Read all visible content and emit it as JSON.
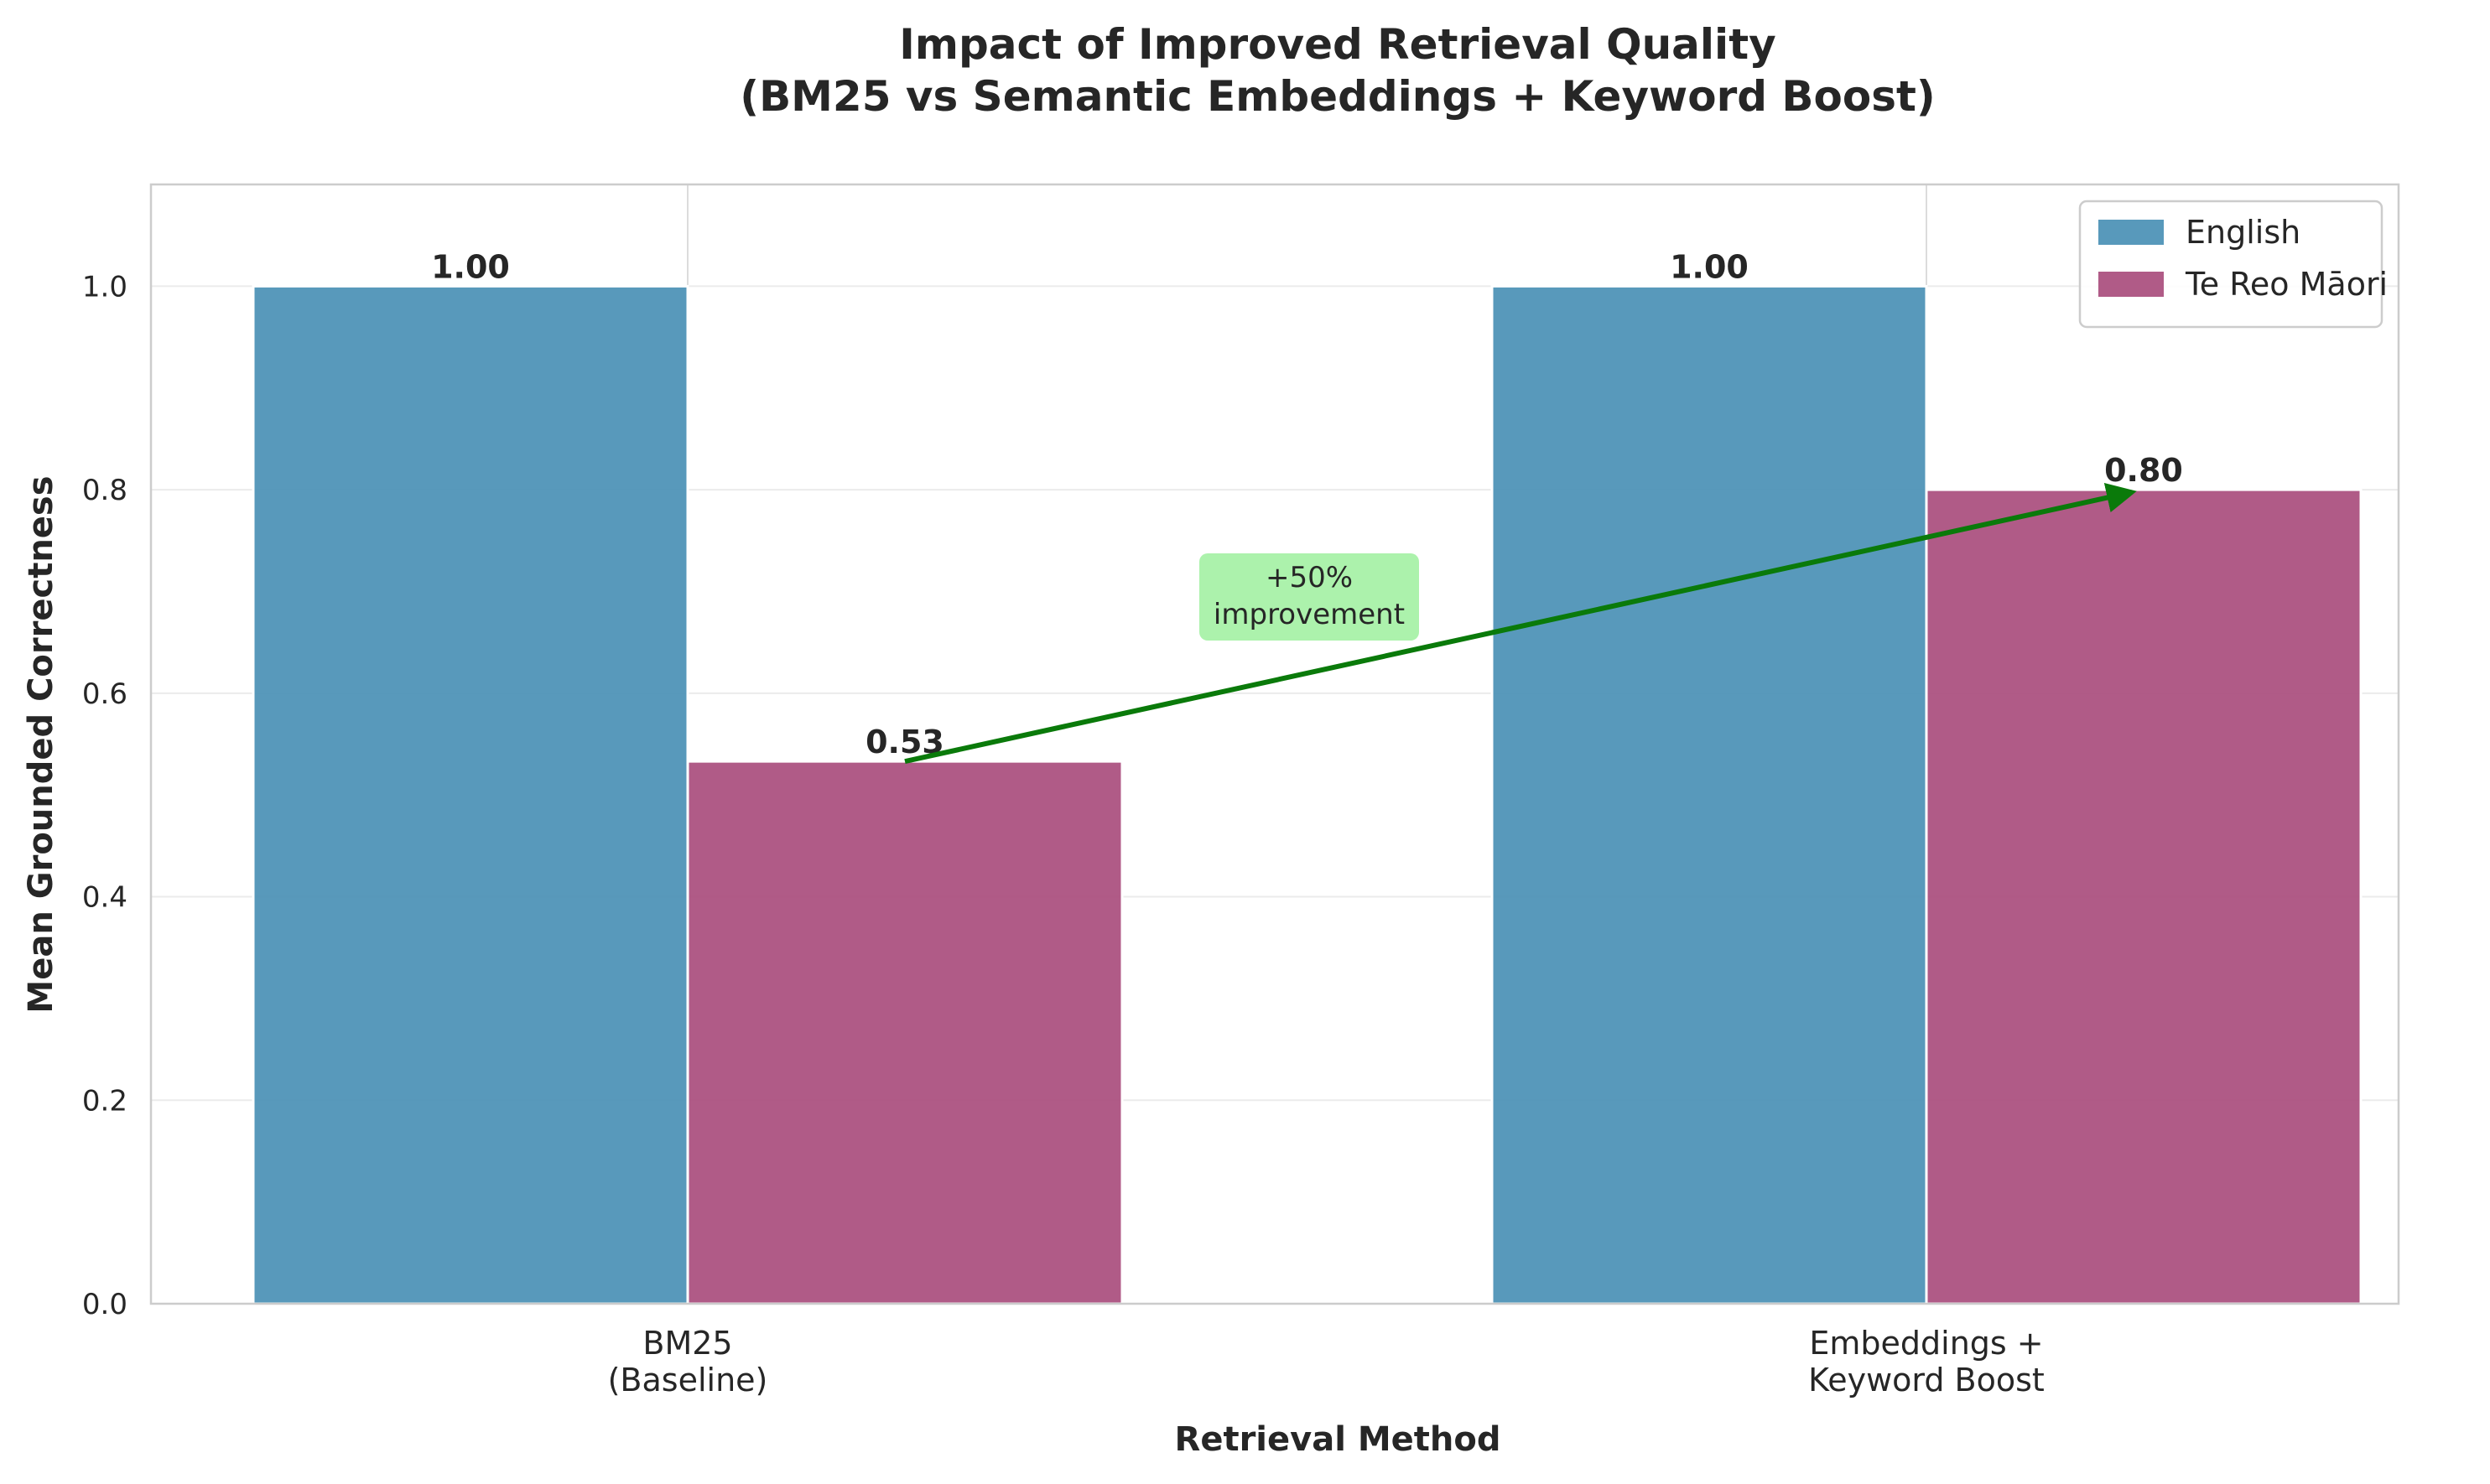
{
  "chart_data": {
    "type": "bar",
    "title_lines": [
      "Impact of Improved Retrieval Quality",
      "(BM25 vs Semantic Embeddings + Keyword Boost)"
    ],
    "xlabel": "Retrieval Method",
    "ylabel": "Mean Grounded Correctness",
    "categories": [
      {
        "lines": [
          "BM25",
          "(Baseline)"
        ]
      },
      {
        "lines": [
          "Embeddings +",
          "Keyword Boost"
        ]
      }
    ],
    "series": [
      {
        "name": "English",
        "color": "#4a90b5",
        "values": [
          1.0,
          1.0
        ],
        "labels": [
          "1.00",
          "1.00"
        ]
      },
      {
        "name": "Te Reo Māori",
        "color": "#a94d7d",
        "values": [
          0.533,
          0.8
        ],
        "labels": [
          "0.53",
          "0.80"
        ]
      }
    ],
    "ylim": [
      0,
      1.1
    ],
    "yticks": [
      "0.0",
      "0.2",
      "0.4",
      "0.6",
      "0.8",
      "1.0"
    ],
    "grid": true,
    "legend_position": "top-right",
    "annotation": {
      "lines": [
        "+50%",
        "improvement"
      ],
      "arrow_from": {
        "category": 0,
        "series": 1,
        "value": 0.533
      },
      "arrow_to": {
        "category": 1,
        "series": 1,
        "value": 0.8
      },
      "box_color": "#90ee90",
      "arrow_color": "#0a7a0a"
    }
  }
}
